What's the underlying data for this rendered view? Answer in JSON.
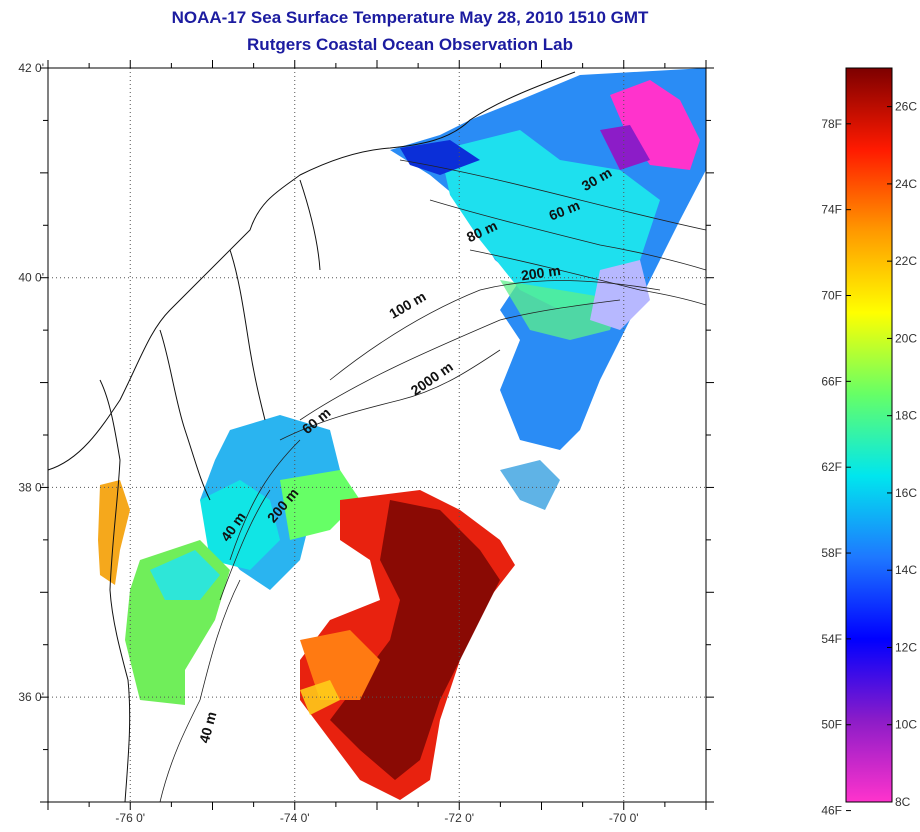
{
  "title_line1": "NOAA-17 Sea Surface Temperature May 28, 2010 1510 GMT",
  "title_line2": "Rutgers Coastal Ocean Observation Lab",
  "map": {
    "lon_range": [
      -77,
      -69
    ],
    "lat_range": [
      35,
      42
    ],
    "lon_ticks": [
      {
        "value": -76,
        "label": "-76 0'"
      },
      {
        "value": -74,
        "label": "-74 0'"
      },
      {
        "value": -72,
        "label": "-72 0'"
      },
      {
        "value": -70,
        "label": "-70 0'"
      }
    ],
    "lat_ticks": [
      {
        "value": 42,
        "label": "42 0'"
      },
      {
        "value": 40,
        "label": "40 0'"
      },
      {
        "value": 38,
        "label": "38 0'"
      },
      {
        "value": 36,
        "label": "36 0'"
      }
    ],
    "grid": "dotted",
    "contour_labels": [
      {
        "text": "30 m",
        "lon": -70.3,
        "lat": 40.9,
        "angle": -30
      },
      {
        "text": "60 m",
        "lon": -70.7,
        "lat": 40.6,
        "angle": -22
      },
      {
        "text": "80 m",
        "lon": -71.7,
        "lat": 40.4,
        "angle": -25
      },
      {
        "text": "200 m",
        "lon": -71.0,
        "lat": 40.0,
        "angle": -8
      },
      {
        "text": "100 m",
        "lon": -72.6,
        "lat": 39.7,
        "angle": -30
      },
      {
        "text": "2000 m",
        "lon": -72.3,
        "lat": 39.0,
        "angle": -35
      },
      {
        "text": "60 m",
        "lon": -73.7,
        "lat": 38.6,
        "angle": -40
      },
      {
        "text": "200 m",
        "lon": -74.1,
        "lat": 37.8,
        "angle": -50
      },
      {
        "text": "40 m",
        "lon": -74.7,
        "lat": 37.6,
        "angle": -55
      },
      {
        "text": "40 m",
        "lon": -75.0,
        "lat": 35.7,
        "angle": -75
      }
    ]
  },
  "colorbar": {
    "fahrenheit": [
      {
        "value": 78,
        "label": "78F"
      },
      {
        "value": 74,
        "label": "74F"
      },
      {
        "value": 70,
        "label": "70F"
      },
      {
        "value": 66,
        "label": "66F"
      },
      {
        "value": 62,
        "label": "62F"
      },
      {
        "value": 58,
        "label": "58F"
      },
      {
        "value": 54,
        "label": "54F"
      },
      {
        "value": 50,
        "label": "50F"
      },
      {
        "value": 46,
        "label": "46F"
      }
    ],
    "celsius": [
      {
        "value": 26,
        "label": "26C"
      },
      {
        "value": 24,
        "label": "24C"
      },
      {
        "value": 22,
        "label": "22C"
      },
      {
        "value": 20,
        "label": "20C"
      },
      {
        "value": 18,
        "label": "18C"
      },
      {
        "value": 16,
        "label": "16C"
      },
      {
        "value": 14,
        "label": "14C"
      },
      {
        "value": 12,
        "label": "12C"
      },
      {
        "value": 10,
        "label": "10C"
      },
      {
        "value": 8,
        "label": "8C"
      }
    ],
    "range_c": [
      8,
      27
    ],
    "colors": [
      "#ff33cc",
      "#8c1cc8",
      "#0000ff",
      "#1e78ff",
      "#00e6ee",
      "#66ff66",
      "#ffff00",
      "#ff9900",
      "#ff1a00",
      "#7d0000"
    ]
  }
}
